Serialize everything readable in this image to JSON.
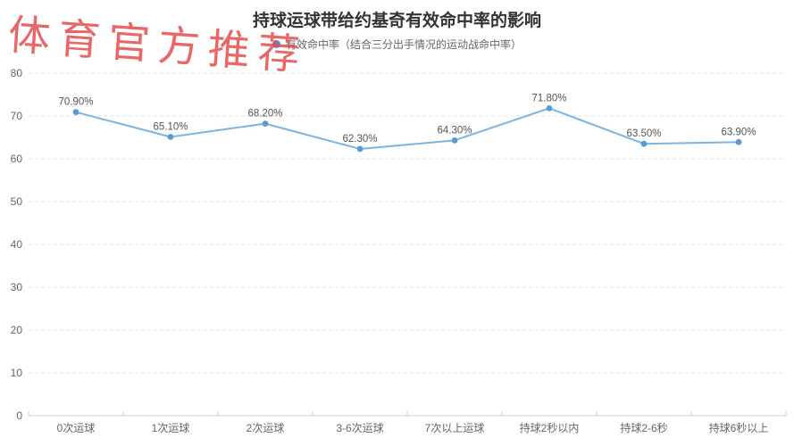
{
  "watermark": {
    "text": "体育官方推荐",
    "color": "#e84c4c"
  },
  "title": "持球运球带给约基奇有效命中率的影响",
  "legend": {
    "label": "有效命中率（结合三分出手情况的运动战命中率）",
    "dot_color": "#4a90d2"
  },
  "chart_data": {
    "type": "line",
    "title": "持球运球带给约基奇有效命中率的影响",
    "categories": [
      "0次运球",
      "1次运球",
      "2次运球",
      "3-6次运球",
      "7次以上运球",
      "持球2秒以内",
      "持球2-6秒",
      "持球6秒以上"
    ],
    "series": [
      {
        "name": "有效命中率（结合三分出手情况的运动战命中率）",
        "values": [
          70.9,
          65.1,
          68.2,
          62.3,
          64.3,
          71.8,
          63.5,
          63.9
        ],
        "labels": [
          "70.90%",
          "65.10%",
          "68.20%",
          "62.30%",
          "64.30%",
          "71.80%",
          "63.50%",
          "63.90%"
        ]
      }
    ],
    "xlabel": "",
    "ylabel": "",
    "ylim": [
      0,
      80
    ],
    "ytick_interval": 10,
    "yticks": [
      0,
      10,
      20,
      30,
      40,
      50,
      60,
      70,
      80
    ],
    "grid": "dashed-horizontal",
    "legend_position": "top"
  },
  "colors": {
    "series_line": "#7db4e0",
    "series_marker": "#5b9bd5",
    "grid": "#e0e0e0",
    "axis": "#cccccc",
    "axis_label": "#666666",
    "data_label": "#555555",
    "title_text": "#333333"
  }
}
